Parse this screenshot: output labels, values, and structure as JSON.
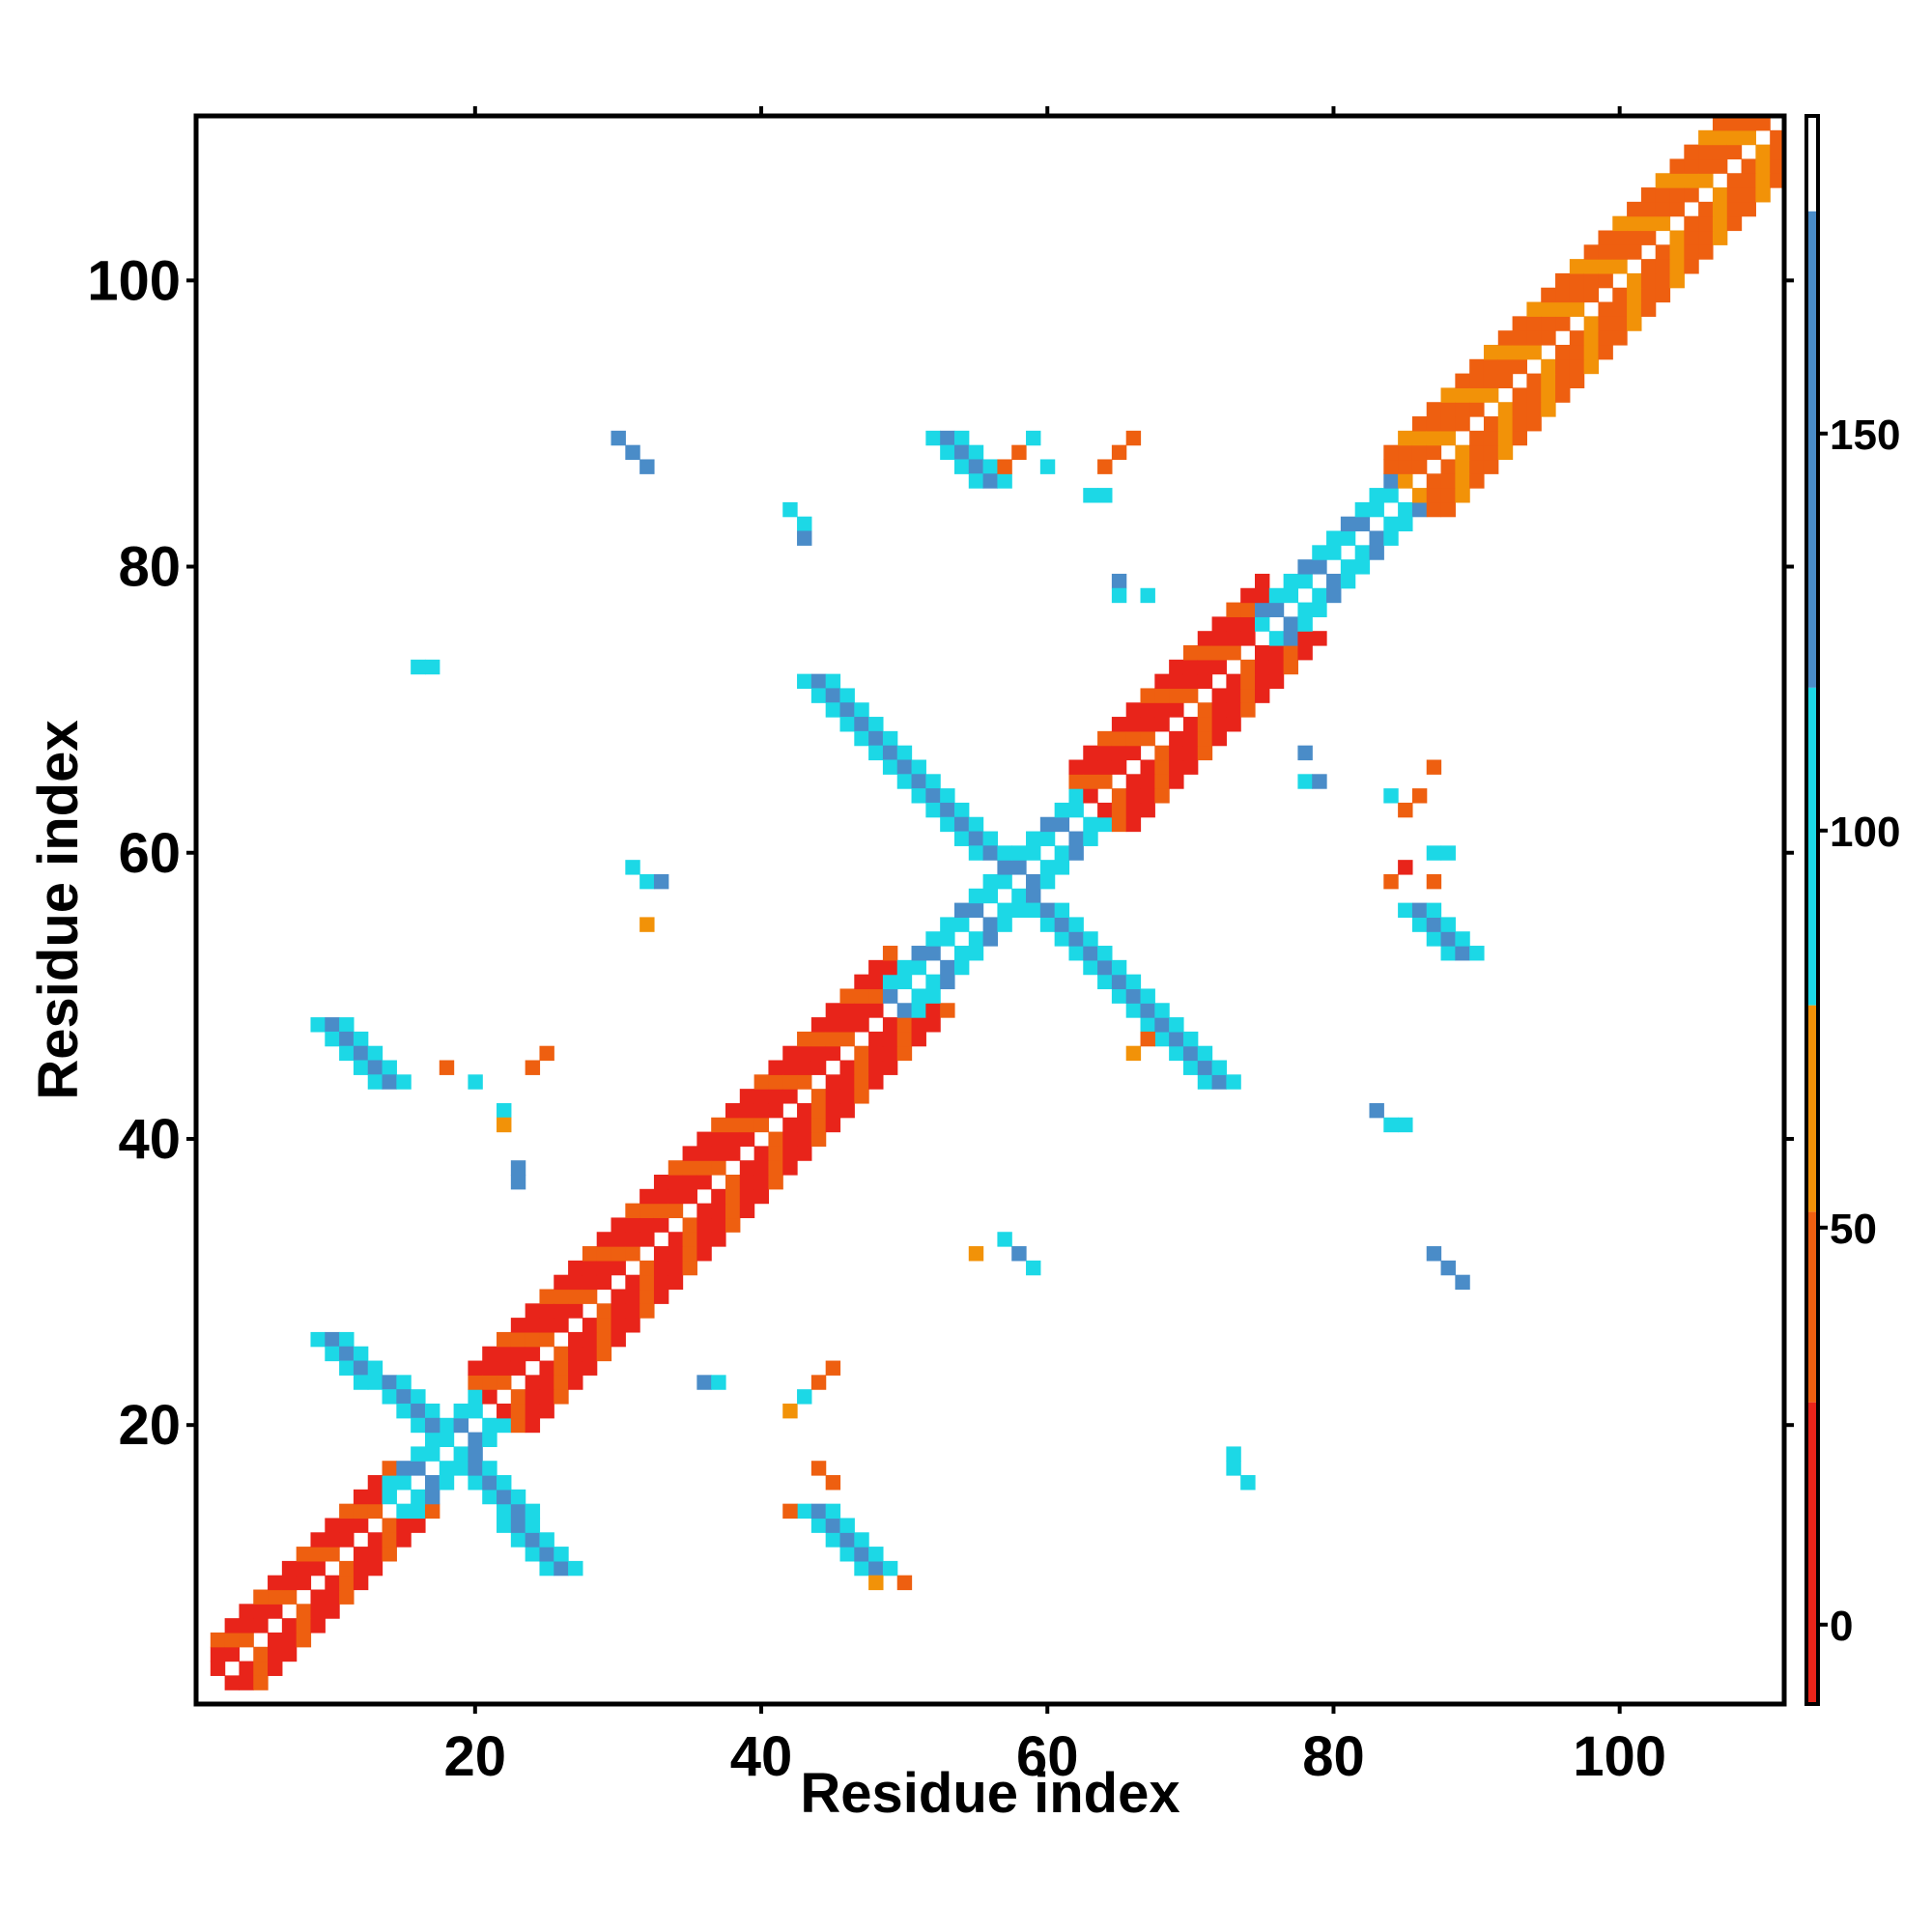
{
  "chart_data": {
    "type": "heatmap",
    "title": "",
    "xlabel": "Residue index",
    "ylabel": "Residue index",
    "xlim": [
      0.5,
      111.5
    ],
    "ylim": [
      0.5,
      111.5
    ],
    "x_ticks": [
      20,
      40,
      60,
      80,
      100
    ],
    "y_ticks": [
      20,
      40,
      60,
      80,
      100
    ],
    "colorbar": {
      "range": [
        -10,
        190
      ],
      "ticks": [
        0,
        50,
        100,
        150
      ],
      "bands": [
        {
          "from": -10,
          "to": 28,
          "color": "#e8241a"
        },
        {
          "from": 28,
          "to": 52,
          "color": "#ee5f10"
        },
        {
          "from": 52,
          "to": 78,
          "color": "#f29208"
        },
        {
          "from": 78,
          "to": 118,
          "color": "#1cd8e6"
        },
        {
          "from": 118,
          "to": 178,
          "color": "#4a8cc8"
        },
        {
          "from": 178,
          "to": 190,
          "color": "#ffffff"
        }
      ]
    },
    "colors": {
      "red": "#e8241a",
      "orange": "#ee5f10",
      "amber": "#f29208",
      "cyan": "#1cd8e6",
      "blue": "#4a8cc8"
    },
    "bands": [
      {
        "description": "main diagonal, N-terminal",
        "from": [
          2,
          2
        ],
        "to": [
          14,
          14
        ],
        "offsets": [
          1,
          2,
          3
        ],
        "value": 15
      },
      {
        "description": "main diagonal, helix region 20-50",
        "from": [
          20,
          20
        ],
        "to": [
          49,
          49
        ],
        "offsets": [
          1,
          2,
          3,
          4
        ],
        "value": 20
      },
      {
        "description": "main diagonal, helix region 62-75",
        "from": [
          62,
          62
        ],
        "to": [
          75,
          75
        ],
        "offsets": [
          1,
          2,
          3,
          4
        ],
        "value": 20
      },
      {
        "description": "main diagonal, C-terminal",
        "from": [
          84,
          84
        ],
        "to": [
          110,
          110
        ],
        "offsets": [
          1,
          2,
          3,
          4
        ],
        "value": 45
      },
      {
        "description": "main diagonal, strand 15-20",
        "from": [
          14,
          14
        ],
        "to": [
          20,
          20
        ],
        "offsets": [
          1,
          2
        ],
        "value": 100
      },
      {
        "description": "main diagonal, strand 50-62",
        "from": [
          49,
          49
        ],
        "to": [
          62,
          62
        ],
        "offsets": [
          1,
          2
        ],
        "value": 100
      },
      {
        "description": "main diagonal, strand 75-84",
        "from": [
          75,
          75
        ],
        "to": [
          84,
          84
        ],
        "offsets": [
          1,
          2
        ],
        "value": 100
      },
      {
        "description": "antiparallel sheet 10-26 (upper)",
        "from": [
          10,
          26
        ],
        "to": [
          17,
          20
        ],
        "thickness": 1,
        "value": 145
      },
      {
        "description": "antiparallel sheet 10-26 (lower)",
        "from": [
          26,
          10
        ],
        "to": [
          20,
          17
        ],
        "thickness": 1,
        "value": 145
      },
      {
        "description": "antiparallel sheet 44-72 (upper)",
        "from": [
          44,
          72
        ],
        "to": [
          56,
          60
        ],
        "thickness": 1,
        "value": 145
      },
      {
        "description": "antiparallel sheet 44-72 (lower)",
        "from": [
          72,
          44
        ],
        "to": [
          60,
          56
        ],
        "thickness": 1,
        "value": 145
      },
      {
        "description": "antiparallel sheet 10-48",
        "from": [
          10,
          48
        ],
        "to": [
          14,
          44
        ],
        "thickness": 1,
        "value": 145
      },
      {
        "description": "antiparallel sheet 48-10",
        "from": [
          48,
          10
        ],
        "to": [
          44,
          14
        ],
        "thickness": 1,
        "value": 145
      },
      {
        "description": "antiparallel sheet 53-89",
        "from": [
          53,
          89
        ],
        "to": [
          56,
          86
        ],
        "thickness": 1,
        "value": 145
      },
      {
        "description": "antiparallel sheet 89-53",
        "from": [
          89,
          53
        ],
        "to": [
          86,
          56
        ],
        "thickness": 1,
        "value": 145
      },
      {
        "description": "contact 30-89",
        "from": [
          30,
          89
        ],
        "to": [
          32,
          87
        ],
        "thickness": 0,
        "value": 145
      },
      {
        "description": "contact 89-30",
        "from": [
          89,
          30
        ],
        "to": [
          87,
          32
        ],
        "thickness": 0,
        "value": 145
      }
    ],
    "points": [
      {
        "x": 16,
        "y": 73,
        "value": 100
      },
      {
        "x": 17,
        "y": 73,
        "value": 100
      },
      {
        "x": 31,
        "y": 59,
        "value": 100
      },
      {
        "x": 32,
        "y": 58,
        "value": 100
      },
      {
        "x": 33,
        "y": 58,
        "value": 120
      },
      {
        "x": 32,
        "y": 55,
        "value": 65
      },
      {
        "x": 23,
        "y": 38,
        "value": 120
      },
      {
        "x": 23,
        "y": 37,
        "value": 140
      },
      {
        "x": 18,
        "y": 45,
        "value": 50
      },
      {
        "x": 20,
        "y": 44,
        "value": 100
      },
      {
        "x": 22,
        "y": 42,
        "value": 100
      },
      {
        "x": 22,
        "y": 41,
        "value": 65
      },
      {
        "x": 24,
        "y": 45,
        "value": 50
      },
      {
        "x": 25,
        "y": 46,
        "value": 40
      },
      {
        "x": 42,
        "y": 84,
        "value": 100
      },
      {
        "x": 43,
        "y": 83,
        "value": 100
      },
      {
        "x": 43,
        "y": 82,
        "value": 145
      },
      {
        "x": 57,
        "y": 87,
        "value": 50
      },
      {
        "x": 58,
        "y": 88,
        "value": 45
      },
      {
        "x": 59,
        "y": 89,
        "value": 100
      },
      {
        "x": 60,
        "y": 87,
        "value": 100
      },
      {
        "x": 64,
        "y": 87,
        "value": 50
      },
      {
        "x": 65,
        "y": 88,
        "value": 40
      },
      {
        "x": 66,
        "y": 89,
        "value": 50
      },
      {
        "x": 63,
        "y": 85,
        "value": 100
      },
      {
        "x": 64,
        "y": 85,
        "value": 100
      },
      {
        "x": 65,
        "y": 79,
        "value": 140
      },
      {
        "x": 65,
        "y": 78,
        "value": 100
      },
      {
        "x": 67,
        "y": 78,
        "value": 100
      },
      {
        "x": 78,
        "y": 67,
        "value": 140
      },
      {
        "x": 78,
        "y": 65,
        "value": 100
      },
      {
        "x": 79,
        "y": 65,
        "value": 140
      },
      {
        "x": 84,
        "y": 64,
        "value": 100
      },
      {
        "x": 85,
        "y": 63,
        "value": 50
      },
      {
        "x": 86,
        "y": 64,
        "value": 45
      },
      {
        "x": 87,
        "y": 66,
        "value": 50
      },
      {
        "x": 84,
        "y": 58,
        "value": 30
      },
      {
        "x": 85,
        "y": 59,
        "value": 20
      },
      {
        "x": 87,
        "y": 58,
        "value": 50
      },
      {
        "x": 87,
        "y": 60,
        "value": 100
      },
      {
        "x": 88,
        "y": 60,
        "value": 100
      },
      {
        "x": 83,
        "y": 42,
        "value": 145
      },
      {
        "x": 84,
        "y": 41,
        "value": 100
      },
      {
        "x": 85,
        "y": 41,
        "value": 100
      },
      {
        "x": 57,
        "y": 33,
        "value": 100
      },
      {
        "x": 58,
        "y": 32,
        "value": 145
      },
      {
        "x": 59,
        "y": 31,
        "value": 100
      },
      {
        "x": 55,
        "y": 32,
        "value": 65
      },
      {
        "x": 42,
        "y": 21,
        "value": 65
      },
      {
        "x": 43,
        "y": 22,
        "value": 100
      },
      {
        "x": 44,
        "y": 23,
        "value": 50
      },
      {
        "x": 45,
        "y": 24,
        "value": 45
      },
      {
        "x": 36,
        "y": 23,
        "value": 145
      },
      {
        "x": 37,
        "y": 23,
        "value": 100
      },
      {
        "x": 44,
        "y": 17,
        "value": 45
      },
      {
        "x": 45,
        "y": 16,
        "value": 50
      },
      {
        "x": 42,
        "y": 14,
        "value": 45
      },
      {
        "x": 48,
        "y": 9,
        "value": 65
      },
      {
        "x": 50,
        "y": 9,
        "value": 45
      },
      {
        "x": 73,
        "y": 18,
        "value": 100
      },
      {
        "x": 73,
        "y": 17,
        "value": 100
      },
      {
        "x": 74,
        "y": 16,
        "value": 100
      },
      {
        "x": 66,
        "y": 46,
        "value": 65
      },
      {
        "x": 67,
        "y": 47,
        "value": 50
      }
    ]
  }
}
